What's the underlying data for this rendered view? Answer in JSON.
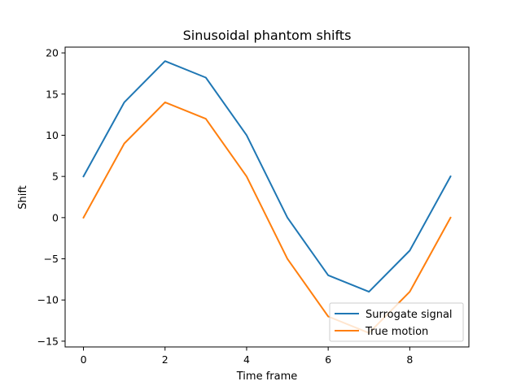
{
  "chart_data": {
    "type": "line",
    "title": "Sinusoidal phantom shifts",
    "xlabel": "Time frame",
    "ylabel": "Shift",
    "xlim": [
      -0.45,
      9.45
    ],
    "ylim": [
      -15.7,
      20.7
    ],
    "x": [
      0,
      1,
      2,
      3,
      4,
      5,
      6,
      7,
      8,
      9
    ],
    "xticks": [
      0,
      2,
      4,
      6,
      8
    ],
    "yticks": [
      -15,
      -10,
      -5,
      0,
      5,
      10,
      15,
      20
    ],
    "xtick_labels": [
      "0",
      "2",
      "4",
      "6",
      "8"
    ],
    "ytick_labels": [
      "−15",
      "−10",
      "−5",
      "0",
      "5",
      "10",
      "15",
      "20"
    ],
    "grid": false,
    "legend_position": "lower-right",
    "series": [
      {
        "name": "Surrogate signal",
        "color": "#1f77b4",
        "values": [
          5,
          14,
          19,
          17,
          10,
          0,
          -7,
          -9,
          -4,
          5
        ]
      },
      {
        "name": "True motion",
        "color": "#ff7f0e",
        "values": [
          0,
          9,
          14,
          12,
          5,
          -5,
          -12,
          -14,
          -9,
          0
        ]
      }
    ]
  }
}
